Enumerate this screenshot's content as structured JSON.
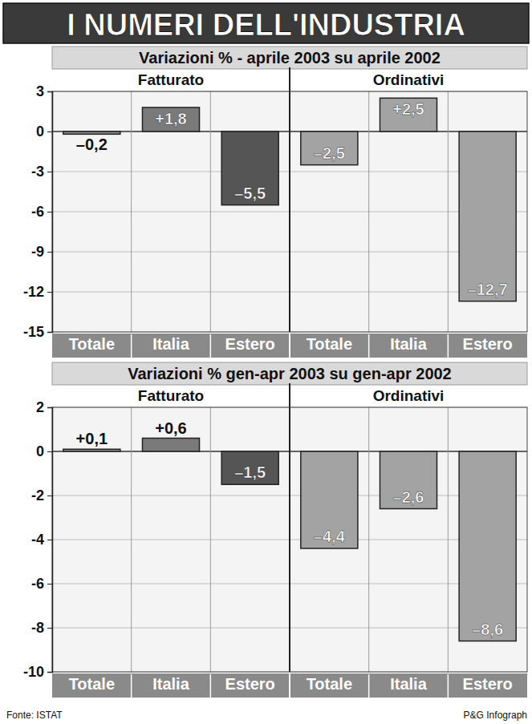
{
  "title": "I NUMERI DELL'INDUSTRIA",
  "source": "Fonte: ISTAT",
  "credit": "P&G Infograph",
  "chart_data": [
    {
      "type": "bar",
      "title": "Variazioni % - aprile 2003 su aprile 2002",
      "categories": [
        "Totale",
        "Italia",
        "Estero"
      ],
      "series": [
        {
          "name": "Fatturato",
          "colors": [
            "#8c8c8c",
            "#7a7a7a",
            "#555555"
          ],
          "values": [
            -0.2,
            1.8,
            -5.5
          ],
          "value_labels": [
            "–0,2",
            "+1,8",
            "–5,5"
          ]
        },
        {
          "name": "Ordinativi",
          "colors": [
            "#a3a3a3",
            "#a3a3a3",
            "#a3a3a3"
          ],
          "values": [
            -2.5,
            2.5,
            -12.7
          ],
          "value_labels": [
            "–2,5",
            "+2,5",
            "–12,7"
          ]
        }
      ],
      "ylim": [
        -15,
        3
      ],
      "yticks": [
        3,
        0,
        -3,
        -6,
        -9,
        -12,
        -15
      ],
      "grid": true,
      "data_labels": true
    },
    {
      "type": "bar",
      "title": "Variazioni % gen-apr 2003 su gen-apr 2002",
      "categories": [
        "Totale",
        "Italia",
        "Estero"
      ],
      "series": [
        {
          "name": "Fatturato",
          "colors": [
            "#8c8c8c",
            "#7a7a7a",
            "#555555"
          ],
          "values": [
            0.1,
            0.6,
            -1.5
          ],
          "value_labels": [
            "+0,1",
            "+0,6",
            "–1,5"
          ]
        },
        {
          "name": "Ordinativi",
          "colors": [
            "#a3a3a3",
            "#a3a3a3",
            "#a3a3a3"
          ],
          "values": [
            -4.4,
            -2.6,
            -8.6
          ],
          "value_labels": [
            "–4,4",
            "–2,6",
            "–8,6"
          ]
        }
      ],
      "ylim": [
        -10,
        2
      ],
      "yticks": [
        2,
        0,
        -2,
        -4,
        -6,
        -8,
        -10
      ],
      "grid": true,
      "data_labels": true
    }
  ]
}
